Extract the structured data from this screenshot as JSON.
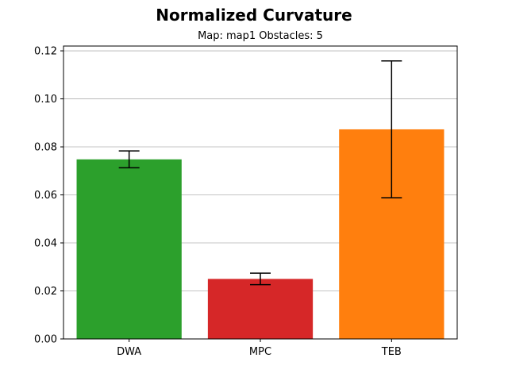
{
  "chart_data": {
    "type": "bar",
    "title": "Normalized Curvature",
    "subtitle": "Map: map1 Obstacles: 5",
    "xlabel": "",
    "ylabel": "",
    "categories": [
      "DWA",
      "MPC",
      "TEB"
    ],
    "values": [
      0.0748,
      0.025,
      0.0873
    ],
    "errors": [
      0.0035,
      0.0024,
      0.0285
    ],
    "colors": [
      "#2ca02c",
      "#d62728",
      "#ff7f0e"
    ],
    "ylim": [
      0,
      0.122
    ],
    "yticks": [
      0.0,
      0.02,
      0.04,
      0.06,
      0.08,
      0.1,
      0.12
    ],
    "ytick_labels": [
      "0.00",
      "0.02",
      "0.04",
      "0.06",
      "0.08",
      "0.10",
      "0.12"
    ],
    "grid": "y-major",
    "legend": "none"
  }
}
